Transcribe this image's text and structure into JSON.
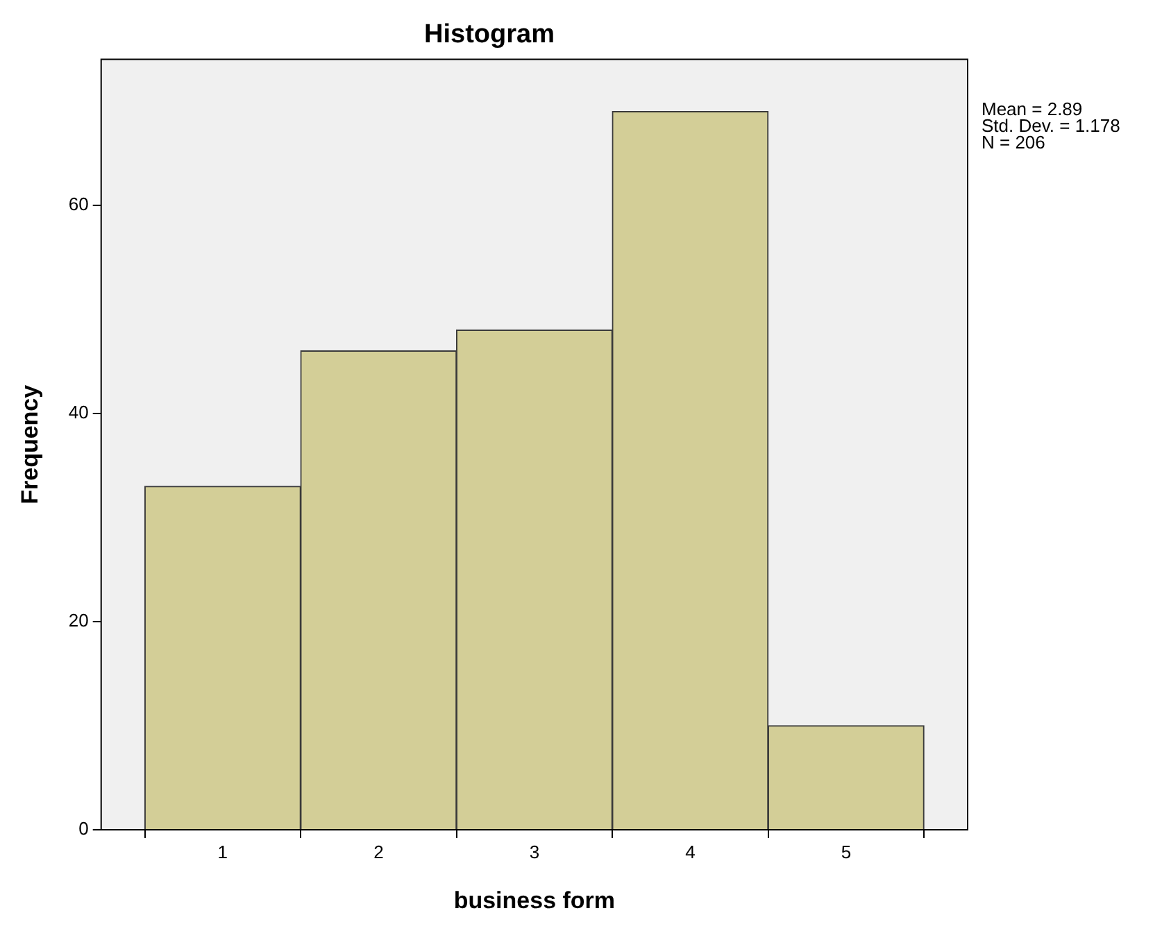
{
  "chart_data": {
    "type": "histogram",
    "title": "Histogram",
    "xlabel": "business form",
    "ylabel": "Frequency",
    "bins": [
      0.5,
      1.5,
      2.5,
      3.5,
      4.5,
      5.5
    ],
    "values": [
      33,
      46,
      48,
      69,
      10
    ],
    "color": "#d3ce97",
    "xlim": [
      0.22,
      5.78
    ],
    "xticks": [
      1,
      2,
      3,
      4,
      5
    ],
    "ylim": [
      0,
      74
    ],
    "yticks": [
      0,
      20,
      40,
      60
    ],
    "legend": false,
    "annotations": [
      "Mean = 2.89",
      "Std. Dev. = 1.178",
      "N = 206"
    ]
  }
}
